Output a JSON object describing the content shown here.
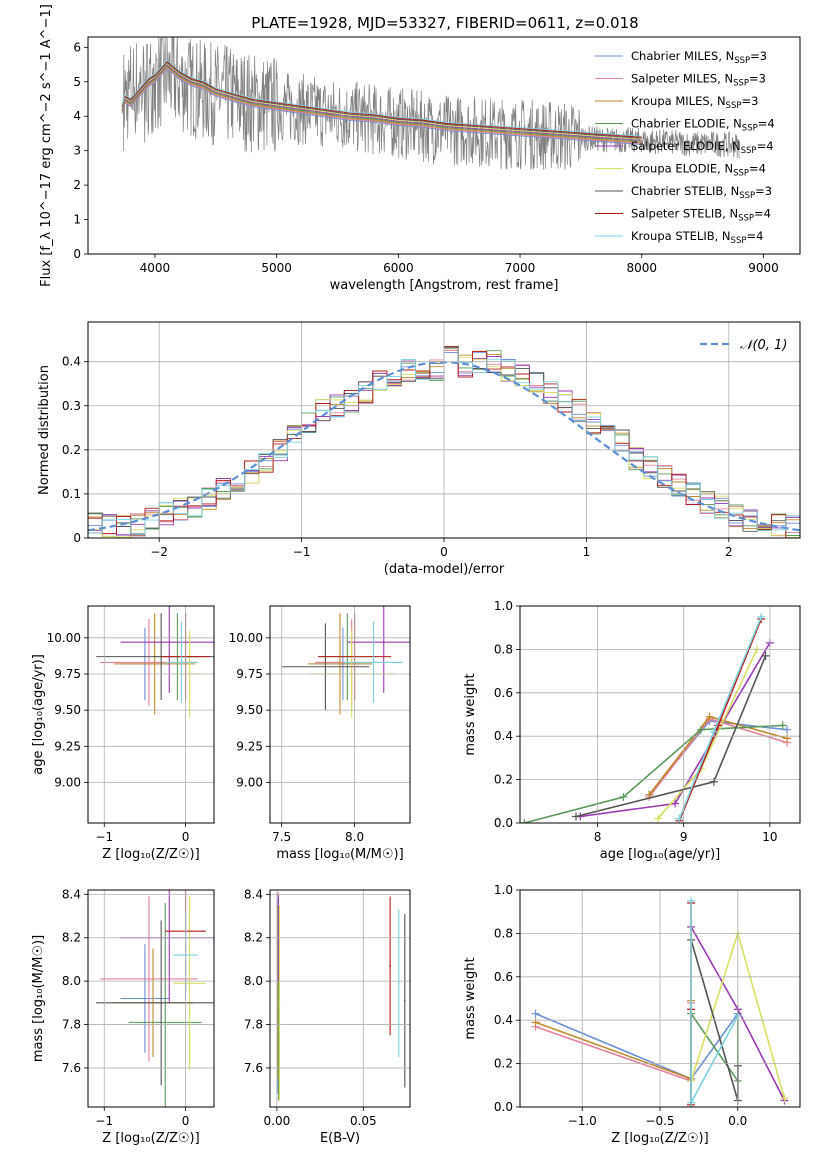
{
  "figure": {
    "title": "PLATE=1928, MJD=53327, FIBERID=0611, z=0.018"
  },
  "colors": {
    "data": "#7f7f7f",
    "gauss": "#5b8fd6",
    "grid": "#b0b0b0",
    "series": [
      "#6b8fd6",
      "#e6829e",
      "#c08a2a",
      "#5a9a5a",
      "#9a3ab4",
      "#d9e060",
      "#555555",
      "#b81c1c",
      "#7ad4e0"
    ]
  },
  "chart_data": [
    {
      "id": "spectrum",
      "type": "line",
      "xlabel": "wavelength [Angstrom, rest frame]",
      "ylabel": "Flux [f_λ 10^−17 erg cm^−2 s^−1 A^−1]",
      "xlim": [
        3450,
        9300
      ],
      "ylim": [
        0,
        6.3
      ],
      "xticks": [
        4000,
        5000,
        6000,
        7000,
        8000,
        9000
      ],
      "yticks": [
        0,
        1,
        2,
        3,
        4,
        5,
        6
      ],
      "legend_position": "top-right",
      "data_series": {
        "name": "data",
        "x": [
          3740,
          3800,
          3900,
          4000,
          4100,
          4200,
          4400,
          4600,
          4800,
          5000,
          5200,
          5400,
          5600,
          5800,
          6000,
          6200,
          6400,
          6600,
          6800,
          7000,
          7200,
          7400,
          7600,
          7800,
          8000,
          8200,
          8400,
          8600,
          8800
        ],
        "y": [
          4.5,
          4.8,
          4.9,
          5.0,
          5.2,
          5.0,
          4.7,
          4.6,
          4.4,
          4.3,
          4.2,
          4.1,
          4.0,
          3.9,
          3.8,
          3.7,
          3.6,
          3.6,
          3.5,
          3.5,
          3.45,
          3.4,
          3.35,
          3.3,
          3.3,
          3.25,
          3.2,
          3.2,
          3.15
        ]
      },
      "model_x": [
        3730,
        3750,
        3800,
        3850,
        3900,
        3950,
        4000,
        4050,
        4100,
        4200,
        4300,
        4400,
        4500,
        4600,
        4800,
        5000,
        5200,
        5400,
        5600,
        5800,
        6000,
        6200,
        6400,
        6600,
        6800,
        7000,
        7200,
        7400,
        7600,
        7800,
        8000
      ],
      "model_y": [
        4.2,
        4.5,
        4.4,
        4.6,
        4.8,
        5.0,
        5.1,
        5.3,
        5.5,
        5.2,
        5.0,
        4.9,
        4.7,
        4.6,
        4.4,
        4.3,
        4.2,
        4.1,
        4.0,
        3.95,
        3.85,
        3.8,
        3.7,
        3.65,
        3.6,
        3.55,
        3.5,
        3.45,
        3.4,
        3.35,
        3.3
      ],
      "series": [
        {
          "name": "Chabrier MILES",
          "nssp": "3"
        },
        {
          "name": "Salpeter MILES",
          "nssp": "3"
        },
        {
          "name": "Kroupa MILES",
          "nssp": "3"
        },
        {
          "name": "Chabrier ELODIE",
          "nssp": "4"
        },
        {
          "name": "Salpeter ELODIE",
          "nssp": "4"
        },
        {
          "name": "Kroupa ELODIE",
          "nssp": "4"
        },
        {
          "name": "Chabrier STELIB",
          "nssp": "3"
        },
        {
          "name": "Salpeter STELIB",
          "nssp": "4"
        },
        {
          "name": "Kroupa STELIB",
          "nssp": "4"
        }
      ]
    },
    {
      "id": "residuals",
      "type": "histogram",
      "xlabel": "(data-model)/error",
      "ylabel": "Normed distribution",
      "xlim": [
        -2.5,
        2.5
      ],
      "ylim": [
        0,
        0.49
      ],
      "xticks": [
        -2,
        -1,
        0,
        1,
        2
      ],
      "yticks": [
        0.0,
        0.1,
        0.2,
        0.3,
        0.4
      ],
      "grid": true,
      "legend_position": "top-right",
      "gauss_label": "𝒩(0, 1)",
      "bin_edges": [
        -2.5,
        -2.4,
        -2.3,
        -2.2,
        -2.1,
        -2.0,
        -1.9,
        -1.8,
        -1.7,
        -1.6,
        -1.5,
        -1.4,
        -1.3,
        -1.2,
        -1.1,
        -1.0,
        -0.9,
        -0.8,
        -0.7,
        -0.6,
        -0.5,
        -0.4,
        -0.3,
        -0.2,
        -0.1,
        0.0,
        0.1,
        0.2,
        0.3,
        0.4,
        0.5,
        0.6,
        0.7,
        0.8,
        0.9,
        1.0,
        1.1,
        1.2,
        1.3,
        1.4,
        1.5,
        1.6,
        1.7,
        1.8,
        1.9,
        2.0,
        2.1,
        2.2,
        2.3,
        2.4,
        2.5
      ],
      "hist_base": [
        0.035,
        0.028,
        0.025,
        0.03,
        0.045,
        0.055,
        0.065,
        0.07,
        0.09,
        0.11,
        0.13,
        0.15,
        0.17,
        0.2,
        0.23,
        0.26,
        0.29,
        0.3,
        0.31,
        0.33,
        0.36,
        0.37,
        0.38,
        0.37,
        0.38,
        0.41,
        0.39,
        0.4,
        0.4,
        0.38,
        0.37,
        0.35,
        0.33,
        0.31,
        0.29,
        0.26,
        0.24,
        0.22,
        0.18,
        0.16,
        0.14,
        0.12,
        0.1,
        0.08,
        0.07,
        0.05,
        0.04,
        0.035,
        0.03,
        0.025
      ]
    },
    {
      "id": "age-vs-z",
      "type": "errorbar",
      "xlabel": "Z [log₁₀(Z/Z☉)]",
      "ylabel": "age  [log₁₀(age/yr)]",
      "xlim": [
        -1.2,
        0.35
      ],
      "ylim": [
        8.72,
        10.22
      ],
      "xticks": [
        -1,
        0
      ],
      "yticks": [
        9.0,
        9.25,
        9.5,
        9.75,
        10.0
      ],
      "yticklabels": [
        "9.00",
        "9.25",
        "9.50",
        "9.75",
        "10.00"
      ],
      "grid": true,
      "points": [
        {
          "x": -0.5,
          "xerr": 0.3,
          "y": 9.82,
          "yerr": 0.25
        },
        {
          "x": -0.45,
          "xerr": 0.6,
          "y": 9.83,
          "yerr": 0.3
        },
        {
          "x": -0.38,
          "xerr": 0.5,
          "y": 9.82,
          "yerr": 0.35
        },
        {
          "x": -0.1,
          "xerr": 0.3,
          "y": 9.87,
          "yerr": 0.3
        },
        {
          "x": -0.2,
          "xerr": 0.6,
          "y": 9.97,
          "yerr": 0.35
        },
        {
          "x": 0.05,
          "xerr": 0.2,
          "y": 9.75,
          "yerr": 0.3
        },
        {
          "x": -0.3,
          "xerr": 0.8,
          "y": 9.87,
          "yerr": 0.3
        },
        {
          "x": 0.0,
          "xerr": 0.3,
          "y": 9.87,
          "yerr": 0.3
        },
        {
          "x": -0.05,
          "xerr": 0.2,
          "y": 9.83,
          "yerr": 0.28
        }
      ]
    },
    {
      "id": "age-vs-mass",
      "type": "errorbar",
      "xlabel": "mass [log₁₀(M/M☉)]",
      "ylabel": "",
      "xlim": [
        7.42,
        8.38
      ],
      "ylim": [
        8.72,
        10.22
      ],
      "xticks": [
        7.5,
        8.0
      ],
      "xticklabels": [
        "7.5",
        "8.0"
      ],
      "yticks": [
        9.0,
        9.25,
        9.5,
        9.75,
        10.0
      ],
      "yticklabels": [
        "9.00",
        "9.25",
        "9.50",
        "9.75",
        "10.00"
      ],
      "grid": true,
      "points": [
        {
          "x": 7.92,
          "xerr": 0.2,
          "y": 9.82,
          "yerr": 0.25
        },
        {
          "x": 7.98,
          "xerr": 0.25,
          "y": 9.83,
          "yerr": 0.3
        },
        {
          "x": 7.9,
          "xerr": 0.22,
          "y": 9.82,
          "yerr": 0.35
        },
        {
          "x": 7.95,
          "xerr": 0.2,
          "y": 9.87,
          "yerr": 0.3
        },
        {
          "x": 8.2,
          "xerr": 0.25,
          "y": 9.97,
          "yerr": 0.35
        },
        {
          "x": 7.98,
          "xerr": 0.3,
          "y": 9.75,
          "yerr": 0.3
        },
        {
          "x": 7.8,
          "xerr": 0.3,
          "y": 9.8,
          "yerr": 0.3
        },
        {
          "x": 8.0,
          "xerr": 0.25,
          "y": 9.87,
          "yerr": 0.3
        },
        {
          "x": 8.13,
          "xerr": 0.2,
          "y": 9.83,
          "yerr": 0.28
        }
      ]
    },
    {
      "id": "mass-weight-vs-age",
      "type": "line",
      "xlabel": "age  [log₁₀(age/yr)]",
      "ylabel": "mass weight",
      "xlim": [
        7.1,
        10.35
      ],
      "ylim": [
        0,
        1
      ],
      "xticks": [
        8,
        9,
        10
      ],
      "yticks": [
        0.0,
        0.2,
        0.4,
        0.6,
        0.8,
        1.0
      ],
      "yticklabels": [
        "0.0",
        "0.2",
        "0.4",
        "0.6",
        "0.8",
        "1.0"
      ],
      "grid": true,
      "series": [
        {
          "x": [
            8.6,
            9.3,
            10.2
          ],
          "y": [
            0.13,
            0.47,
            0.43
          ]
        },
        {
          "x": [
            8.6,
            9.3,
            10.2
          ],
          "y": [
            0.12,
            0.48,
            0.37
          ]
        },
        {
          "x": [
            8.6,
            9.3,
            10.2
          ],
          "y": [
            0.13,
            0.49,
            0.39
          ]
        },
        {
          "x": [
            7.15,
            8.3,
            9.2,
            10.15
          ],
          "y": [
            0.0,
            0.12,
            0.43,
            0.45
          ]
        },
        {
          "x": [
            7.8,
            8.9,
            10.0
          ],
          "y": [
            0.03,
            0.09,
            0.83
          ]
        },
        {
          "x": [
            8.7,
            9.2,
            9.85
          ],
          "y": [
            0.02,
            0.25,
            0.8
          ]
        },
        {
          "x": [
            7.75,
            9.35,
            9.95
          ],
          "y": [
            0.03,
            0.19,
            0.77
          ]
        },
        {
          "x": [
            8.95,
            9.4,
            9.9
          ],
          "y": [
            0.01,
            0.45,
            0.94
          ]
        },
        {
          "x": [
            8.95,
            9.35,
            9.9
          ],
          "y": [
            0.02,
            0.42,
            0.95
          ]
        }
      ]
    },
    {
      "id": "mass-vs-z",
      "type": "errorbar",
      "xlabel": "Z [log₁₀(Z/Z☉)]",
      "ylabel": "mass [log₁₀(M/M☉)]",
      "xlim": [
        -1.2,
        0.35
      ],
      "ylim": [
        7.42,
        8.42
      ],
      "xticks": [
        -1,
        0
      ],
      "yticks": [
        7.6,
        7.8,
        8.0,
        8.2,
        8.4
      ],
      "yticklabels": [
        "7.6",
        "7.8",
        "8.0",
        "8.2",
        "8.4"
      ],
      "grid": true,
      "points": [
        {
          "x": -0.5,
          "xerr": 0.3,
          "y": 7.92,
          "yerr": 0.25
        },
        {
          "x": -0.45,
          "xerr": 0.6,
          "y": 8.01,
          "yerr": 0.38
        },
        {
          "x": -0.4,
          "xerr": 0.5,
          "y": 7.9,
          "yerr": 0.25
        },
        {
          "x": -0.25,
          "xerr": 0.45,
          "y": 7.81,
          "yerr": 0.55
        },
        {
          "x": -0.2,
          "xerr": 0.6,
          "y": 8.2,
          "yerr": 0.3
        },
        {
          "x": 0.05,
          "xerr": 0.2,
          "y": 7.99,
          "yerr": 0.4
        },
        {
          "x": -0.3,
          "xerr": 0.8,
          "y": 7.9,
          "yerr": 0.38
        },
        {
          "x": 0.0,
          "xerr": 0.25,
          "y": 8.23,
          "yerr": 0.28
        },
        {
          "x": 0.0,
          "xerr": 0.15,
          "y": 8.12,
          "yerr": 0.2
        }
      ]
    },
    {
      "id": "mass-vs-ebv",
      "type": "errorbar",
      "xlabel": "E(B-V)",
      "ylabel": "",
      "xlim": [
        -0.004,
        0.077
      ],
      "ylim": [
        7.42,
        8.42
      ],
      "xticks": [
        0.0,
        0.05
      ],
      "xticklabels": [
        "0.00",
        "0.05"
      ],
      "yticks": [
        7.6,
        7.8,
        8.0,
        8.2,
        8.4
      ],
      "yticklabels": [
        "7.6",
        "7.8",
        "8.0",
        "8.2",
        "8.4"
      ],
      "grid": true,
      "points": [
        {
          "x": 0.0005,
          "xerr": 0.0005,
          "y": 7.93,
          "yerr": 0.45
        },
        {
          "x": 0.0008,
          "xerr": 0.0005,
          "y": 8.01,
          "yerr": 0.4
        },
        {
          "x": 0.0005,
          "xerr": 0.0005,
          "y": 7.95,
          "yerr": 0.4
        },
        {
          "x": 0.001,
          "xerr": 0.0005,
          "y": 7.9,
          "yerr": 0.45
        },
        {
          "x": 0.0008,
          "xerr": 0.0005,
          "y": 8.2,
          "yerr": 0.2
        },
        {
          "x": 0.0015,
          "xerr": 0.0005,
          "y": 7.9,
          "yerr": 0.45
        },
        {
          "x": 0.074,
          "xerr": 0.0005,
          "y": 7.91,
          "yerr": 0.4
        },
        {
          "x": 0.0655,
          "xerr": 0.0005,
          "y": 8.07,
          "yerr": 0.32
        },
        {
          "x": 0.0705,
          "xerr": 0.0005,
          "y": 7.99,
          "yerr": 0.34
        }
      ]
    },
    {
      "id": "mass-weight-vs-z",
      "type": "line",
      "xlabel": "Z [log₁₀(Z/Z☉)]",
      "ylabel": "mass weight",
      "xlim": [
        -1.4,
        0.4
      ],
      "ylim": [
        0,
        1
      ],
      "xticks": [
        -1.0,
        -0.5,
        0.0
      ],
      "xticklabels": [
        "−1.0",
        "−0.5",
        "0.0"
      ],
      "yticks": [
        0.0,
        0.2,
        0.4,
        0.6,
        0.8,
        1.0
      ],
      "yticklabels": [
        "0.0",
        "0.2",
        "0.4",
        "0.6",
        "0.8",
        "1.0"
      ],
      "grid": true,
      "series": [
        {
          "x": [
            -1.3,
            -0.3,
            0.0
          ],
          "y": [
            0.43,
            0.13,
            0.43
          ]
        },
        {
          "x": [
            -1.3,
            -0.3,
            -0.3
          ],
          "y": [
            0.37,
            0.12,
            0.48
          ]
        },
        {
          "x": [
            -1.3,
            -0.3,
            -0.3
          ],
          "y": [
            0.39,
            0.13,
            0.49
          ]
        },
        {
          "x": [
            -0.3,
            -0.3,
            0.0,
            0.0
          ],
          "y": [
            0.0,
            0.43,
            0.12,
            0.45
          ]
        },
        {
          "x": [
            -0.3,
            0.0,
            0.3
          ],
          "y": [
            0.83,
            0.45,
            0.03
          ]
        },
        {
          "x": [
            -0.3,
            0.0,
            0.3
          ],
          "y": [
            0.12,
            0.8,
            0.04
          ]
        },
        {
          "x": [
            -0.3,
            0.0,
            0.0
          ],
          "y": [
            0.77,
            0.03,
            0.19
          ]
        },
        {
          "x": [
            -0.3,
            -0.3,
            -0.3
          ],
          "y": [
            0.94,
            0.45,
            0.01
          ]
        },
        {
          "x": [
            -0.3,
            -0.3,
            0.0
          ],
          "y": [
            0.95,
            0.02,
            0.42
          ]
        }
      ]
    }
  ]
}
